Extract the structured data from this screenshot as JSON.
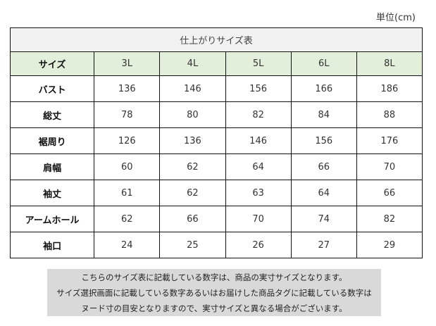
{
  "unit_label": "単位(cm)",
  "table": {
    "title": "仕上がりサイズ表",
    "header_label": "サイズ",
    "sizes": [
      "3L",
      "4L",
      "5L",
      "6L",
      "8L"
    ],
    "rows": [
      {
        "label": "バスト",
        "values": [
          "136",
          "146",
          "156",
          "166",
          "186"
        ]
      },
      {
        "label": "総丈",
        "values": [
          "78",
          "80",
          "82",
          "84",
          "88"
        ]
      },
      {
        "label": "裾周り",
        "values": [
          "126",
          "136",
          "146",
          "156",
          "176"
        ]
      },
      {
        "label": "肩幅",
        "values": [
          "60",
          "62",
          "64",
          "66",
          "70"
        ]
      },
      {
        "label": "袖丈",
        "values": [
          "61",
          "62",
          "63",
          "64",
          "66"
        ]
      },
      {
        "label": "アームホール",
        "values": [
          "62",
          "66",
          "70",
          "74",
          "82"
        ]
      },
      {
        "label": "袖口",
        "values": [
          "24",
          "25",
          "26",
          "27",
          "29"
        ]
      }
    ]
  },
  "note": {
    "lines": [
      "こちらのサイズ表に記載している数字は、商品の実寸サイズとなります。",
      "サイズ選択画面に記載している数字あるいはお届けした商品タグに記載している数字は",
      "ヌード寸の目安となりますので、実寸サイズと異なる場合がございます。"
    ]
  },
  "colors": {
    "title_bg": "#f2f2f2",
    "header_bg": "#e2efda",
    "note_bg": "#d9d9d9",
    "border": "#111111"
  }
}
